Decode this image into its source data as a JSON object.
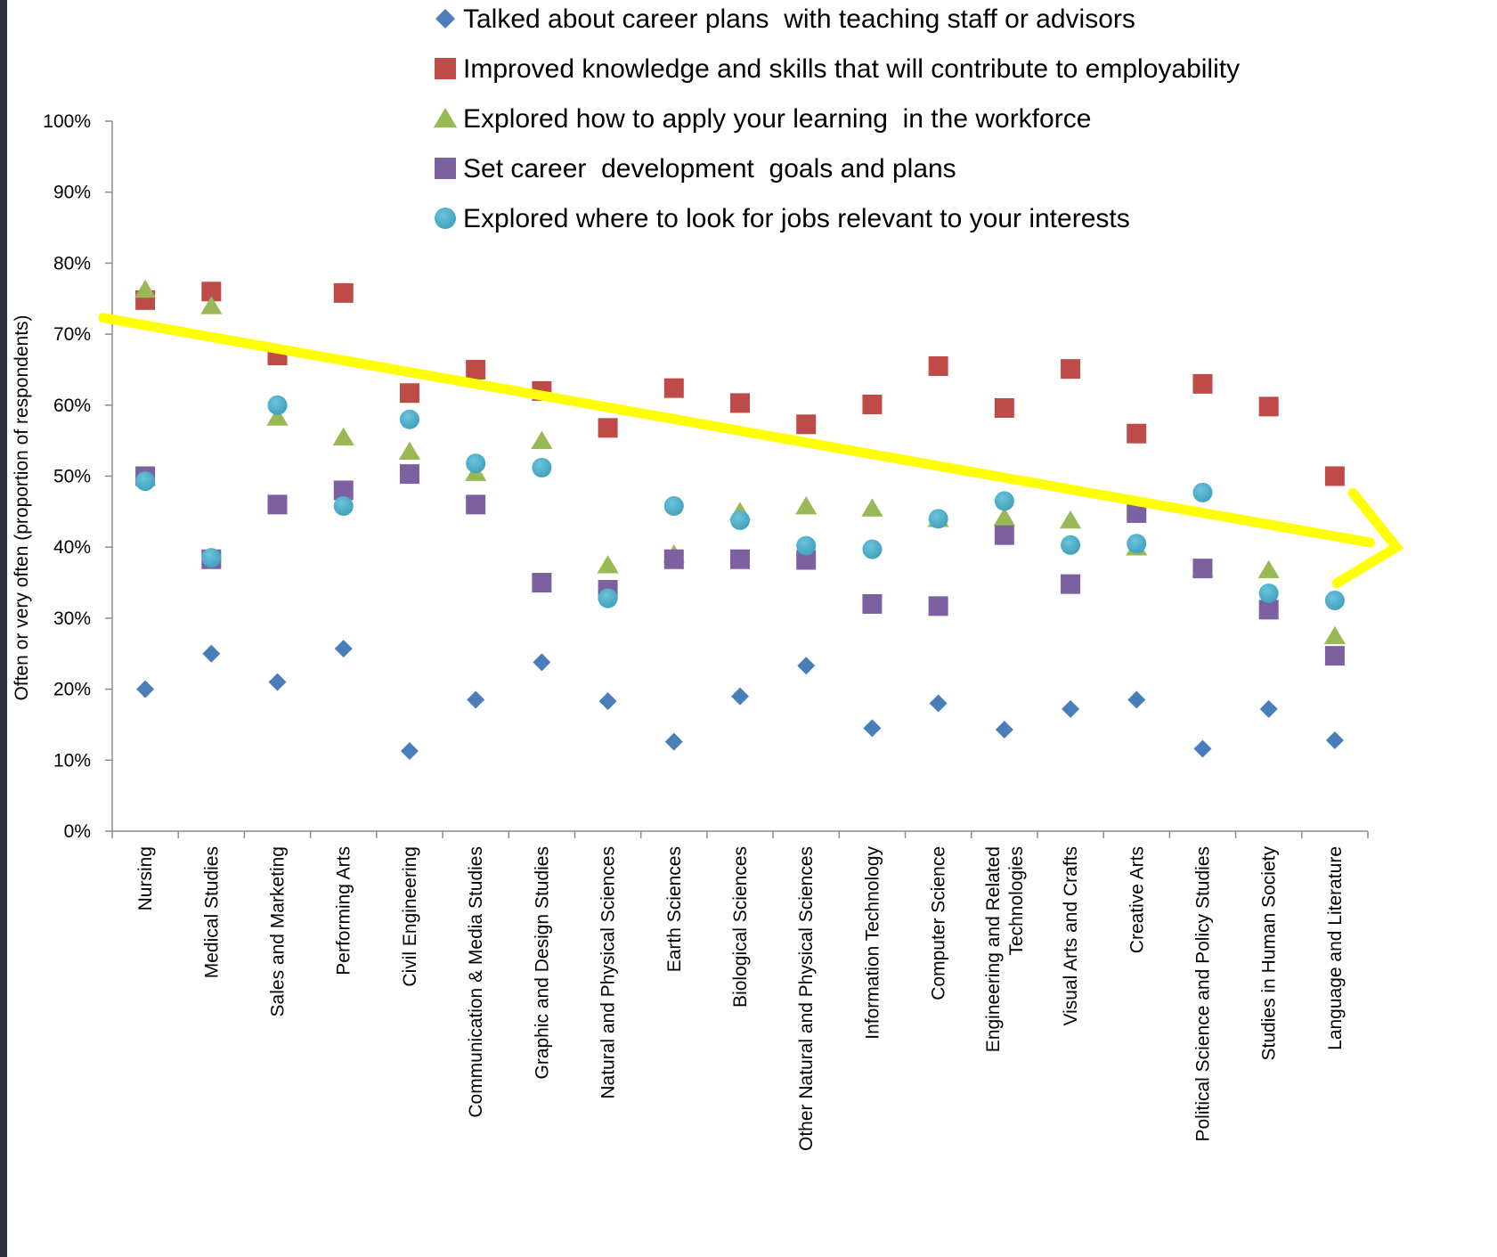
{
  "chart_data": {
    "type": "scatter",
    "title": "",
    "xlabel": "",
    "ylabel": "Often or very often (proportion of respondents)",
    "ylim": [
      0,
      100
    ],
    "ytick_labels": [
      "0%",
      "10%",
      "20%",
      "30%",
      "40%",
      "50%",
      "60%",
      "70%",
      "80%",
      "90%",
      "100%"
    ],
    "grid": false,
    "legend_position": "top",
    "categories": [
      [
        "Nursing"
      ],
      [
        "Medical Studies"
      ],
      [
        "Sales and Marketing"
      ],
      [
        "Performing Arts"
      ],
      [
        "Civil Engineering"
      ],
      [
        "Communication & Media Studies"
      ],
      [
        "Graphic and Design Studies"
      ],
      [
        "Natural and Physical Sciences"
      ],
      [
        "Earth Sciences"
      ],
      [
        "Biological Sciences"
      ],
      [
        "Other Natural and Physical Sciences"
      ],
      [
        "Information Technology"
      ],
      [
        "Computer Science"
      ],
      [
        "Engineering and Related",
        "Technologies"
      ],
      [
        "Visual Arts and Crafts"
      ],
      [
        "Creative Arts"
      ],
      [
        "Political Science and Policy Studies"
      ],
      [
        "Studies in Human Society"
      ],
      [
        "Language and Literature"
      ]
    ],
    "series": [
      {
        "name": "Talked about career plans  with teaching staff or advisors",
        "marker": "diamond",
        "color": "#4a7ebb",
        "values": [
          20,
          25,
          21,
          25.7,
          11.3,
          18.5,
          23.8,
          18.3,
          12.6,
          19,
          23.3,
          14.5,
          18,
          14.3,
          17.2,
          18.5,
          11.6,
          17.2,
          12.8
        ]
      },
      {
        "name": "Improved knowledge and skills that will contribute to employability",
        "marker": "square",
        "color": "#be4b48",
        "values": [
          74.8,
          76,
          67,
          75.8,
          61.7,
          65,
          62,
          56.8,
          62.4,
          60.3,
          57.3,
          60.1,
          65.5,
          59.6,
          65.1,
          56,
          63,
          59.8,
          50
        ]
      },
      {
        "name": "Explored how to apply your learning  in the workforce",
        "marker": "triangle",
        "color": "#98b954",
        "values": [
          76.3,
          74,
          58.3,
          55.5,
          53.5,
          50.5,
          55,
          37.5,
          39,
          45,
          45.8,
          45.5,
          44,
          44.2,
          43.8,
          40,
          37,
          36.8,
          27.5
        ]
      },
      {
        "name": "Set career  development  goals and plans",
        "marker": "square",
        "color": "#7d60a0",
        "values": [
          50,
          38.3,
          46,
          48,
          50.3,
          46,
          35,
          34,
          38.3,
          38.3,
          38.2,
          32,
          31.7,
          41.7,
          34.8,
          44.8,
          37,
          31.2,
          24.7
        ]
      },
      {
        "name": "Explored where to look for jobs relevant to your interests",
        "marker": "circle",
        "color": "#46aac5",
        "values": [
          49.3,
          38.5,
          60,
          45.8,
          58,
          51.8,
          51.2,
          32.8,
          45.8,
          43.8,
          40.2,
          39.7,
          44,
          46.5,
          40.3,
          40.5,
          47.7,
          33.5,
          32.5
        ]
      }
    ],
    "annotations": [
      {
        "type": "arrow",
        "color": "#ffff00",
        "description": "downward trend",
        "from": [
          0,
          72.3
        ],
        "to": [
          19,
          40
        ]
      }
    ]
  }
}
